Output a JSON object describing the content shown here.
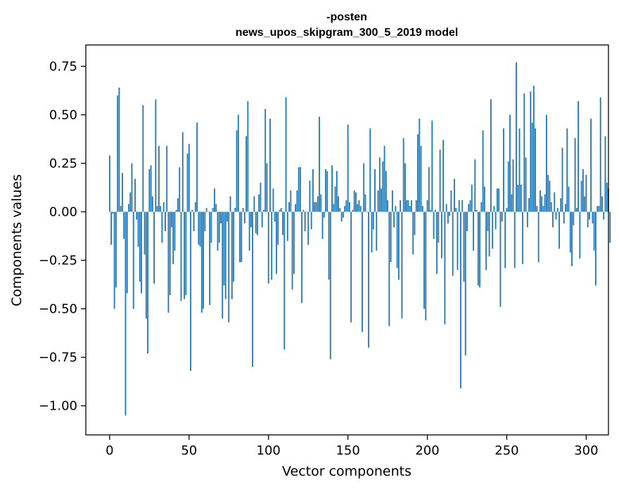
{
  "chart_data": {
    "type": "bar",
    "title": [
      "-posten",
      "news_upos_skipgram_300_5_2019 model"
    ],
    "xlabel": "Vector components",
    "ylabel": "Components values",
    "xlim": [
      -15,
      314
    ],
    "ylim": [
      -1.15,
      0.86
    ],
    "xticks": [
      0,
      50,
      100,
      150,
      200,
      250,
      300
    ],
    "xtick_labels": [
      "0",
      "50",
      "100",
      "150",
      "200",
      "250",
      "300"
    ],
    "yticks": [
      0.75,
      0.5,
      0.25,
      0.0,
      -0.25,
      -0.5,
      -0.75,
      -1.0
    ],
    "ytick_labels": [
      "0.75",
      "0.50",
      "0.25",
      "0.00",
      "−0.25",
      "−0.50",
      "−0.75",
      "−1.00"
    ],
    "bar_color": "#1f77b4",
    "series": [
      {
        "name": "-posten",
        "values": [
          0.29,
          -0.17,
          -0.01,
          -0.5,
          -0.39,
          0.6,
          0.64,
          0.03,
          0.2,
          -0.14,
          -1.05,
          -0.42,
          0.04,
          0.1,
          0.25,
          -0.5,
          0.17,
          -0.04,
          -0.18,
          -0.36,
          -0.42,
          0.55,
          -0.22,
          -0.55,
          -0.73,
          0.22,
          0.24,
          0.08,
          -0.37,
          0.58,
          0.03,
          0.34,
          0.03,
          -0.16,
          0.05,
          -0.1,
          0.34,
          -0.52,
          -0.43,
          -0.08,
          -0.27,
          -0.2,
          0.01,
          0.07,
          0.23,
          -0.46,
          0.41,
          -0.45,
          -0.43,
          0.3,
          0.35,
          -0.82,
          0.01,
          -0.1,
          0.05,
          0.46,
          -0.17,
          -0.18,
          -0.52,
          -0.5,
          -0.1,
          0.02,
          0.0,
          -0.48,
          -0.16,
          0.02,
          0.12,
          0.04,
          -0.2,
          -0.16,
          -0.06,
          -0.55,
          -0.38,
          -0.45,
          -0.05,
          -0.57,
          0.08,
          -0.45,
          -0.36,
          0.02,
          0.42,
          0.5,
          -0.26,
          -0.26,
          0.02,
          -0.06,
          0.39,
          0.57,
          -0.2,
          -0.08,
          -0.8,
          0.08,
          -0.11,
          -0.12,
          0.09,
          0.15,
          -0.08,
          0.01,
          0.53,
          0.25,
          -0.37,
          0.48,
          -0.35,
          0.12,
          -0.05,
          -0.32,
          -0.17,
          0.01,
          0.02,
          -0.12,
          -0.71,
          0.59,
          -0.15,
          0.05,
          0.11,
          -0.4,
          -0.32,
          0.04,
          0.11,
          0.23,
          0.23,
          -0.47,
          0.01,
          -0.1,
          0.0,
          -0.17,
          0.16,
          -0.09,
          0.22,
          0.05,
          0.05,
          0.08,
          0.49,
          0.09,
          -0.14,
          -0.03,
          0.22,
          0.21,
          -0.35,
          -0.76,
          0.24,
          0.04,
          0.13,
          0.21,
          0.08,
          0.02,
          -0.05,
          -0.03,
          0.03,
          0.06,
          0.45,
          0.05,
          -0.57,
          0.01,
          0.11,
          0.1,
          0.04,
          0.06,
          0.03,
          -0.62,
          0.25,
          0.09,
          0.0,
          -0.7,
          0.43,
          -0.21,
          -0.09,
          0.22,
          -0.2,
          0.11,
          0.28,
          0.12,
          0.26,
          0.34,
          0.21,
          0.06,
          -0.59,
          -0.26,
          0.11,
          -0.08,
          0.03,
          -0.29,
          -0.35,
          0.06,
          -0.55,
          0.38,
          0.25,
          0.06,
          0.06,
          0.03,
          0.06,
          -0.22,
          -0.12,
          0.06,
          0.4,
          0.48,
          0.34,
          0.03,
          -0.5,
          -0.56,
          0.06,
          0.23,
          0.01,
          0.47,
          -0.14,
          0.01,
          -0.32,
          -0.16,
          0.32,
          -0.24,
          0.37,
          -0.58,
          0.04,
          -0.06,
          -0.02,
          0.11,
          -0.33,
          0.17,
          0.02,
          -0.3,
          0.06,
          -0.91,
          0.06,
          -0.36,
          -0.74,
          -0.1,
          0.04,
          0.06,
          0.14,
          -0.2,
          0.27,
          0.01,
          -0.38,
          -0.39,
          0.05,
          0.42,
          0.13,
          -0.3,
          -0.1,
          -0.23,
          0.58,
          -0.19,
          0.03,
          -0.09,
          0.12,
          0.12,
          -0.49,
          -0.05,
          0.43,
          -0.29,
          0.02,
          0.26,
          0.5,
          0.09,
          0.27,
          -0.29,
          0.77,
          0.14,
          0.43,
          0.14,
          -0.27,
          0.61,
          0.28,
          -0.08,
          0.07,
          0.62,
          0.46,
          0.65,
          0.43,
          0.03,
          -0.26,
          0.11,
          0.08,
          0.03,
          0.09,
          0.5,
          0.19,
          0.16,
          0.05,
          -0.08,
          0.1,
          -0.04,
          0.02,
          -0.19,
          0.07,
          0.33,
          -0.06,
          0.04,
          0.43,
          0.13,
          -0.21,
          -0.28,
          -0.07,
          0.38,
          0.02,
          0.57,
          -0.24,
          0.16,
          0.22,
          0.08,
          0.19,
          -0.08,
          -0.04,
          0.48,
          -0.06,
          -0.2,
          -0.38,
          0.03,
          0.03,
          0.59,
          0.08,
          -0.04,
          0.39,
          0.15,
          0.12,
          -0.16
        ]
      }
    ]
  }
}
